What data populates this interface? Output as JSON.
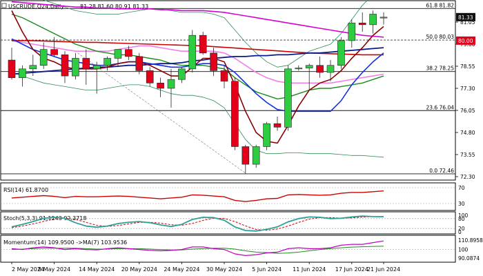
{
  "header": {
    "symbol": "USCRUDE,Q24,Daily",
    "ohlc": "81.28 81.60 80.91 81.33"
  },
  "price_panel": {
    "y_ticks": [
      "81.05",
      "79.80",
      "78.55",
      "77.30",
      "76.05",
      "74.80",
      "73.55",
      "72.30"
    ],
    "fib_levels": [
      {
        "label": "61.8 81.82",
        "value": 81.82
      },
      {
        "label": "50.0 80.03",
        "value": 80.03
      },
      {
        "label": "38.2 78.25",
        "value": 78.25
      },
      {
        "label": "23.6 76.04",
        "value": 76.04
      },
      {
        "label": "0.0 72.46",
        "value": 72.46
      }
    ],
    "current_price": "81.33",
    "marked_level": "80.00",
    "colors": {
      "bull": "#2ecc40",
      "bear": "#e3001b",
      "ma_magenta": "#d400d4",
      "ma_navy": "#0a1a8a",
      "ma_red": "#cc0000",
      "ma_blue": "#1430e0",
      "ma_darkred": "#8b0000",
      "ma_green": "#1a8a1a",
      "ma_pink": "#f080e8",
      "bollinger": "#2e8b57"
    }
  },
  "rsi_panel": {
    "label": "RSI(14) 61.8700",
    "ticks": [
      "70",
      "30"
    ]
  },
  "stoch_panel": {
    "label": "Stoch(5,3,3) 91.1243 92.3718",
    "ticks": [
      "100",
      "80",
      "20",
      "0"
    ]
  },
  "momentum_panel": {
    "label": "Momentum(14) 109.9500  ->MA(7) 103.9536",
    "ticks": [
      "110.8958",
      "100",
      "90.0874"
    ]
  },
  "x_axis": {
    "labels": [
      "2 May 2024",
      "8 May 2024",
      "14 May 2024",
      "20 May 2024",
      "24 May 2024",
      "30 May 2024",
      "5 Jun 2024",
      "11 Jun 2024",
      "17 Jun 2024",
      "21 Jun 2024"
    ]
  },
  "chart_data": {
    "type": "candlestick",
    "candles": [
      {
        "o": 78.9,
        "h": 79.6,
        "l": 77.8,
        "c": 77.9
      },
      {
        "o": 77.9,
        "h": 78.6,
        "l": 77.4,
        "c": 78.4
      },
      {
        "o": 78.4,
        "h": 79.2,
        "l": 78.0,
        "c": 78.6
      },
      {
        "o": 78.6,
        "h": 79.9,
        "l": 78.4,
        "c": 79.5
      },
      {
        "o": 79.5,
        "h": 80.2,
        "l": 79.1,
        "c": 79.2
      },
      {
        "o": 79.2,
        "h": 79.4,
        "l": 77.6,
        "c": 78.0
      },
      {
        "o": 78.0,
        "h": 79.3,
        "l": 77.8,
        "c": 79.0
      },
      {
        "o": 79.0,
        "h": 79.5,
        "l": 77.5,
        "c": 78.4
      },
      {
        "o": 78.4,
        "h": 78.8,
        "l": 77.0,
        "c": 78.6
      },
      {
        "o": 78.6,
        "h": 79.1,
        "l": 78.3,
        "c": 79.0
      },
      {
        "o": 79.0,
        "h": 79.5,
        "l": 78.5,
        "c": 79.5
      },
      {
        "o": 79.5,
        "h": 79.7,
        "l": 78.9,
        "c": 79.1
      },
      {
        "o": 79.1,
        "h": 79.3,
        "l": 78.1,
        "c": 78.3
      },
      {
        "o": 78.3,
        "h": 78.5,
        "l": 77.4,
        "c": 77.6
      },
      {
        "o": 77.6,
        "h": 77.9,
        "l": 76.8,
        "c": 77.3
      },
      {
        "o": 77.3,
        "h": 78.4,
        "l": 76.2,
        "c": 77.8
      },
      {
        "o": 77.8,
        "h": 78.5,
        "l": 77.6,
        "c": 78.4
      },
      {
        "o": 78.4,
        "h": 80.6,
        "l": 78.2,
        "c": 80.3
      },
      {
        "o": 80.3,
        "h": 80.5,
        "l": 79.2,
        "c": 79.3
      },
      {
        "o": 79.3,
        "h": 79.6,
        "l": 78.0,
        "c": 78.3
      },
      {
        "o": 78.3,
        "h": 78.6,
        "l": 77.3,
        "c": 77.7
      },
      {
        "o": 77.7,
        "h": 77.9,
        "l": 73.8,
        "c": 74.0
      },
      {
        "o": 74.0,
        "h": 74.1,
        "l": 72.46,
        "c": 73.0
      },
      {
        "o": 73.0,
        "h": 74.1,
        "l": 72.8,
        "c": 74.0
      },
      {
        "o": 74.0,
        "h": 75.4,
        "l": 73.8,
        "c": 75.3
      },
      {
        "o": 75.3,
        "h": 75.7,
        "l": 74.9,
        "c": 75.1
      },
      {
        "o": 75.1,
        "h": 78.6,
        "l": 74.9,
        "c": 78.4
      },
      {
        "o": 78.4,
        "h": 78.6,
        "l": 78.3,
        "c": 78.45
      },
      {
        "o": 78.45,
        "h": 78.7,
        "l": 77.2,
        "c": 78.6
      },
      {
        "o": 78.6,
        "h": 79.1,
        "l": 77.9,
        "c": 78.2
      },
      {
        "o": 78.2,
        "h": 78.9,
        "l": 77.7,
        "c": 78.6
      },
      {
        "o": 78.6,
        "h": 80.2,
        "l": 78.4,
        "c": 80.0
      },
      {
        "o": 80.0,
        "h": 81.2,
        "l": 79.6,
        "c": 81.0
      },
      {
        "o": 81.0,
        "h": 81.6,
        "l": 80.5,
        "c": 80.9
      },
      {
        "o": 80.9,
        "h": 81.7,
        "l": 80.4,
        "c": 81.5
      },
      {
        "o": 81.28,
        "h": 81.6,
        "l": 80.91,
        "c": 81.33
      }
    ],
    "rsi": [
      44,
      46,
      48,
      50,
      48,
      45,
      48,
      47,
      47,
      48,
      49,
      48,
      46,
      44,
      42,
      44,
      46,
      52,
      51,
      49,
      47,
      38,
      35,
      38,
      42,
      43,
      52,
      53,
      52,
      51,
      52,
      56,
      58,
      58,
      60,
      61.87
    ],
    "stoch_k": [
      30,
      45,
      62,
      82,
      88,
      82,
      55,
      35,
      28,
      35,
      50,
      58,
      62,
      55,
      42,
      32,
      45,
      75,
      88,
      86,
      70,
      30,
      8,
      5,
      15,
      30,
      60,
      80,
      90,
      88,
      80,
      82,
      90,
      95,
      92,
      91.12
    ],
    "stoch_d": [
      25,
      35,
      48,
      63,
      77,
      84,
      75,
      57,
      39,
      33,
      38,
      48,
      57,
      58,
      53,
      43,
      40,
      51,
      69,
      83,
      81,
      62,
      36,
      14,
      9,
      17,
      35,
      57,
      77,
      86,
      86,
      83,
      84,
      89,
      92,
      92.37
    ],
    "momentum": [
      101,
      100,
      102,
      103,
      102,
      100,
      101,
      100,
      99.5,
      101,
      102,
      101,
      100,
      99,
      98.5,
      99,
      100,
      103,
      103,
      101,
      100,
      95,
      93,
      94,
      96,
      97,
      101,
      102,
      101,
      101,
      102,
      105,
      106,
      106,
      108,
      109.95
    ],
    "momentum_ma": [
      100,
      100.5,
      101,
      101.5,
      101.5,
      101.5,
      101.5,
      101,
      100.5,
      100.5,
      101,
      101,
      101,
      100.5,
      100,
      99.5,
      99.5,
      100.5,
      101,
      101.5,
      101.5,
      100.5,
      98.5,
      97,
      96.5,
      95.5,
      96,
      97,
      98.5,
      100,
      101,
      102,
      102.8,
      103.2,
      103.6,
      103.95
    ],
    "ma_magenta": [
      82.2,
      82.15,
      82.1,
      82.05,
      82.0,
      81.95,
      81.9,
      81.9,
      81.85,
      81.85,
      81.8,
      81.8,
      81.8,
      81.8,
      81.75,
      81.75,
      81.7,
      81.7,
      81.7,
      81.65,
      81.6,
      81.5,
      81.4,
      81.3,
      81.2,
      81.1,
      81.0,
      80.9,
      80.8,
      80.7,
      80.6,
      80.5,
      80.4,
      80.3,
      80.25,
      80.2
    ],
    "ma_navy": [
      78.1,
      78.15,
      78.2,
      78.25,
      78.3,
      78.35,
      78.4,
      78.45,
      78.5,
      78.5,
      78.55,
      78.6,
      78.6,
      78.65,
      78.7,
      78.7,
      78.75,
      78.85,
      78.9,
      79.0,
      79.05,
      79.1,
      79.1,
      79.15,
      79.15,
      79.2,
      79.2,
      79.25,
      79.3,
      79.3,
      79.35,
      79.4,
      79.45,
      79.5,
      79.55,
      79.6
    ],
    "ma_red": [
      80.0,
      80.0,
      80.0,
      79.98,
      79.96,
      79.94,
      79.92,
      79.9,
      79.9,
      79.88,
      79.86,
      79.84,
      79.82,
      79.8,
      79.78,
      79.76,
      79.74,
      79.72,
      79.7,
      79.66,
      79.62,
      79.58,
      79.54,
      79.5,
      79.46,
      79.42,
      79.38,
      79.34,
      79.3,
      79.28,
      79.26,
      79.24,
      79.22,
      79.2,
      79.2,
      79.2
    ],
    "ma_blue": [
      80.1,
      79.8,
      79.5,
      79.3,
      79.1,
      78.9,
      78.8,
      78.7,
      78.6,
      78.6,
      78.7,
      78.8,
      78.8,
      78.7,
      78.6,
      78.5,
      78.5,
      78.6,
      78.7,
      78.7,
      78.6,
      78.2,
      77.6,
      77.0,
      76.5,
      76.1,
      76.0,
      76.0,
      76.0,
      76.0,
      76.0,
      76.6,
      77.5,
      78.2,
      78.8,
      79.3
    ],
    "ma_darkred": [
      81.7,
      80.5,
      79.5,
      79.0,
      78.8,
      78.5,
      78.4,
      78.4,
      78.4,
      78.5,
      78.7,
      78.8,
      78.8,
      78.6,
      78.3,
      78.0,
      78.0,
      78.5,
      79.0,
      79.0,
      78.8,
      77.5,
      76.0,
      74.8,
      74.3,
      74.2,
      75.2,
      76.3,
      77.2,
      77.6,
      77.8,
      78.3,
      79.0,
      79.6,
      80.3,
      80.8
    ],
    "ma_green": [
      81.5,
      81.3,
      81.0,
      80.7,
      80.4,
      80.1,
      79.8,
      79.6,
      79.4,
      79.3,
      79.2,
      79.2,
      79.1,
      79.0,
      78.9,
      78.7,
      78.6,
      78.6,
      78.6,
      78.5,
      78.4,
      77.9,
      77.5,
      77.1,
      76.9,
      76.7,
      76.8,
      77.0,
      77.2,
      77.3,
      77.3,
      77.4,
      77.5,
      77.6,
      77.8,
      78.0
    ],
    "ma_pink": [
      80.0,
      79.9,
      79.8,
      79.7,
      79.6,
      79.5,
      79.4,
      79.4,
      79.4,
      79.4,
      79.5,
      79.6,
      79.7,
      79.7,
      79.6,
      79.5,
      79.4,
      79.4,
      79.4,
      79.4,
      79.3,
      79.0,
      78.6,
      78.2,
      77.9,
      77.7,
      77.6,
      77.6,
      77.6,
      77.6,
      77.6,
      77.7,
      77.8,
      77.9,
      78.0,
      78.1
    ],
    "bb_upper": [
      82.8,
      82.7,
      82.5,
      82.3,
      82.1,
      81.9,
      81.7,
      81.6,
      81.5,
      81.5,
      81.5,
      81.6,
      81.7,
      81.8,
      81.8,
      81.7,
      81.6,
      81.6,
      81.6,
      81.5,
      81.3,
      80.6,
      79.9,
      79.3,
      78.8,
      78.5,
      78.6,
      79.0,
      79.4,
      79.6,
      79.8,
      80.4,
      81.2,
      82.0,
      82.6,
      83.2
    ],
    "bb_lower": [
      78.2,
      78.0,
      77.8,
      77.6,
      77.5,
      77.4,
      77.3,
      77.2,
      77.2,
      77.3,
      77.4,
      77.5,
      77.5,
      77.4,
      77.2,
      77.0,
      76.9,
      76.9,
      76.8,
      76.6,
      76.2,
      75.3,
      74.4,
      73.8,
      73.6,
      73.6,
      73.65,
      73.65,
      73.6,
      73.6,
      73.6,
      73.55,
      73.5,
      73.5,
      73.45,
      73.4
    ],
    "trend_line": [
      {
        "i": 6.2,
        "v": 79.3
      },
      {
        "i": 22.0,
        "v": 72.5
      }
    ]
  }
}
